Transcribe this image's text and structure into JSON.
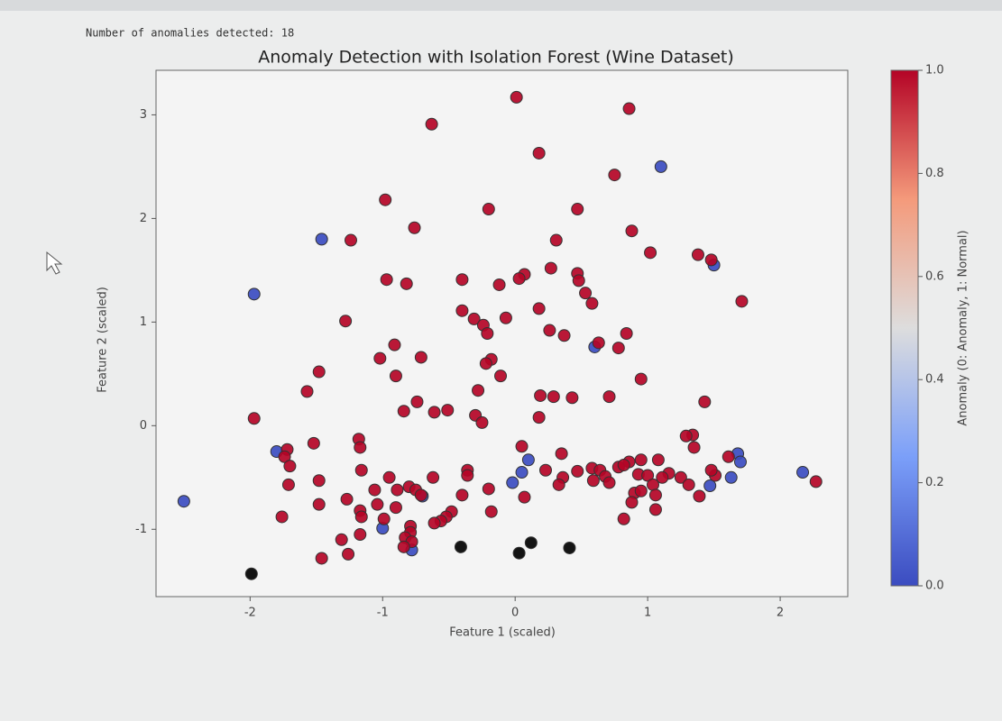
{
  "output_text": "Number of anomalies detected: 18",
  "chart_data": {
    "type": "scatter",
    "title": "Anomaly Detection with Isolation Forest (Wine Dataset)",
    "x_label": "Feature 1 (scaled)",
    "y_label": "Feature 2 (scaled)",
    "xlim": [
      -2.71,
      2.51
    ],
    "ylim": [
      -1.65,
      3.43
    ],
    "xticks": [
      -2,
      -1,
      0,
      1,
      2
    ],
    "yticks": [
      -1,
      0,
      1,
      2,
      3
    ],
    "grid": false,
    "colormap": "coolwarm",
    "edge_color": "#333333",
    "colorbar": {
      "label": "Anomaly (0: Anomaly, 1: Normal)",
      "clim": [
        0,
        1
      ],
      "ticks": [
        {
          "value": 0,
          "label": "0.0"
        },
        {
          "value": 0.2,
          "label": "0.2"
        },
        {
          "value": 0.4,
          "label": "0.4"
        },
        {
          "value": 0.6,
          "label": "0.6"
        },
        {
          "value": 0.8,
          "label": "0.8"
        },
        {
          "value": 1,
          "label": "1.0"
        }
      ]
    },
    "x": [
      -2.5,
      -1.97,
      -1.46,
      -1.8,
      -1.0,
      -0.78,
      -0.7,
      0.1,
      0.05,
      -0.02,
      0.6,
      1.1,
      1.5,
      1.68,
      1.7,
      1.63,
      1.47,
      2.17,
      0.01,
      0.86,
      -0.63,
      0.18,
      0.75,
      -0.98,
      -0.2,
      0.47,
      -0.76,
      -1.24,
      0.88,
      0.31,
      1.02,
      1.38,
      1.48,
      0.27,
      0.07,
      0.03,
      -0.4,
      -0.97,
      -0.82,
      -0.12,
      0.47,
      0.48,
      0.53,
      0.58,
      1.71,
      0.18,
      -0.4,
      -0.31,
      -0.07,
      -1.28,
      -0.24,
      -0.21,
      0.26,
      0.37,
      0.84,
      0.63,
      0.78,
      -0.91,
      -1.02,
      -0.71,
      -0.18,
      -0.22,
      -1.48,
      -0.9,
      -0.11,
      0.95,
      -1.57,
      -0.28,
      0.19,
      0.29,
      0.43,
      0.71,
      1.43,
      -0.74,
      -0.84,
      -0.61,
      -0.51,
      -0.3,
      -0.25,
      0.18,
      -1.97,
      1.34,
      1.35,
      1.29,
      -1.52,
      -1.18,
      -1.17,
      0.05,
      -1.72,
      -1.74,
      -1.7,
      0.35,
      1.61,
      0.95,
      0.86,
      1.08,
      -0.36,
      -0.36,
      0.23,
      0.47,
      0.58,
      0.64,
      0.68,
      0.78,
      0.82,
      -0.62,
      -0.95,
      -1.16,
      -1.48,
      -1.71,
      0.36,
      0.33,
      0.93,
      1.0,
      1.04,
      1.16,
      1.11,
      1.25,
      1.31,
      1.51,
      1.48,
      2.27,
      0.59,
      0.71,
      0.9,
      0.95,
      1.06,
      1.39,
      -0.2,
      0.07,
      -0.4,
      -1.06,
      -0.89,
      -0.8,
      -0.75,
      -0.71,
      -1.27,
      -1.48,
      -1.04,
      -0.9,
      -1.17,
      -1.16,
      -0.48,
      -0.52,
      -0.56,
      -0.61,
      -0.18,
      0.88,
      1.06,
      0.82,
      -1.76,
      -0.99,
      -0.79,
      -0.79,
      -0.83,
      -0.78,
      -0.84,
      -1.17,
      -1.31,
      -1.26,
      -1.46,
      -0.41,
      0.03,
      0.12,
      0.41,
      -1.99
    ],
    "y": [
      -0.73,
      1.27,
      1.8,
      -0.25,
      -0.99,
      -1.2,
      -0.68,
      -0.33,
      -0.45,
      -0.55,
      0.76,
      2.5,
      1.55,
      -0.27,
      -0.35,
      -0.5,
      -0.58,
      -0.45,
      3.17,
      3.06,
      2.91,
      2.63,
      2.42,
      2.18,
      2.09,
      2.09,
      1.91,
      1.79,
      1.88,
      1.79,
      1.67,
      1.65,
      1.6,
      1.52,
      1.46,
      1.42,
      1.41,
      1.41,
      1.37,
      1.36,
      1.47,
      1.4,
      1.28,
      1.18,
      1.2,
      1.13,
      1.11,
      1.03,
      1.04,
      1.01,
      0.97,
      0.89,
      0.92,
      0.87,
      0.89,
      0.8,
      0.75,
      0.78,
      0.65,
      0.66,
      0.64,
      0.6,
      0.52,
      0.48,
      0.48,
      0.45,
      0.33,
      0.34,
      0.29,
      0.28,
      0.27,
      0.28,
      0.23,
      0.23,
      0.14,
      0.13,
      0.15,
      0.1,
      0.03,
      0.08,
      0.07,
      -0.09,
      -0.21,
      -0.1,
      -0.17,
      -0.13,
      -0.21,
      -0.2,
      -0.23,
      -0.3,
      -0.39,
      -0.27,
      -0.3,
      -0.33,
      -0.35,
      -0.33,
      -0.43,
      -0.48,
      -0.43,
      -0.44,
      -0.41,
      -0.43,
      -0.49,
      -0.4,
      -0.38,
      -0.5,
      -0.5,
      -0.43,
      -0.53,
      -0.57,
      -0.5,
      -0.57,
      -0.47,
      -0.48,
      -0.57,
      -0.46,
      -0.5,
      -0.5,
      -0.57,
      -0.48,
      -0.43,
      -0.54,
      -0.53,
      -0.55,
      -0.65,
      -0.63,
      -0.67,
      -0.68,
      -0.61,
      -0.69,
      -0.67,
      -0.62,
      -0.62,
      -0.59,
      -0.62,
      -0.67,
      -0.71,
      -0.76,
      -0.76,
      -0.79,
      -0.82,
      -0.88,
      -0.83,
      -0.88,
      -0.92,
      -0.94,
      -0.83,
      -0.74,
      -0.81,
      -0.9,
      -0.88,
      -0.9,
      -0.97,
      -1.03,
      -1.08,
      -1.12,
      -1.17,
      -1.05,
      -1.1,
      -1.24,
      -1.28,
      -1.17,
      -1.23,
      -1.13,
      -1.18,
      -1.43
    ],
    "color_values": [
      0,
      0,
      0,
      0,
      0,
      0,
      0,
      0,
      0,
      0,
      0,
      0,
      0,
      0,
      0,
      0,
      0,
      0,
      1,
      1,
      1,
      1,
      1,
      1,
      1,
      1,
      1,
      1,
      1,
      1,
      1,
      1,
      1,
      1,
      1,
      1,
      1,
      1,
      1,
      1,
      1,
      1,
      1,
      1,
      1,
      1,
      1,
      1,
      1,
      1,
      1,
      1,
      1,
      1,
      1,
      1,
      1,
      1,
      1,
      1,
      1,
      1,
      1,
      1,
      1,
      1,
      1,
      1,
      1,
      1,
      1,
      1,
      1,
      1,
      1,
      1,
      1,
      1,
      1,
      1,
      1,
      1,
      1,
      1,
      1,
      1,
      1,
      1,
      1,
      1,
      1,
      1,
      1,
      1,
      1,
      1,
      1,
      1,
      1,
      1,
      1,
      1,
      1,
      1,
      1,
      1,
      1,
      1,
      1,
      1,
      1,
      1,
      1,
      1,
      1,
      1,
      1,
      1,
      1,
      1,
      1,
      1,
      1,
      1,
      1,
      1,
      1,
      1,
      1,
      1,
      1,
      1,
      1,
      1,
      1,
      1,
      1,
      1,
      1,
      1,
      1,
      1,
      1,
      1,
      1,
      1,
      1,
      1,
      1,
      1,
      1,
      1,
      1,
      1,
      1,
      1,
      1,
      1,
      1,
      1,
      1
    ]
  }
}
